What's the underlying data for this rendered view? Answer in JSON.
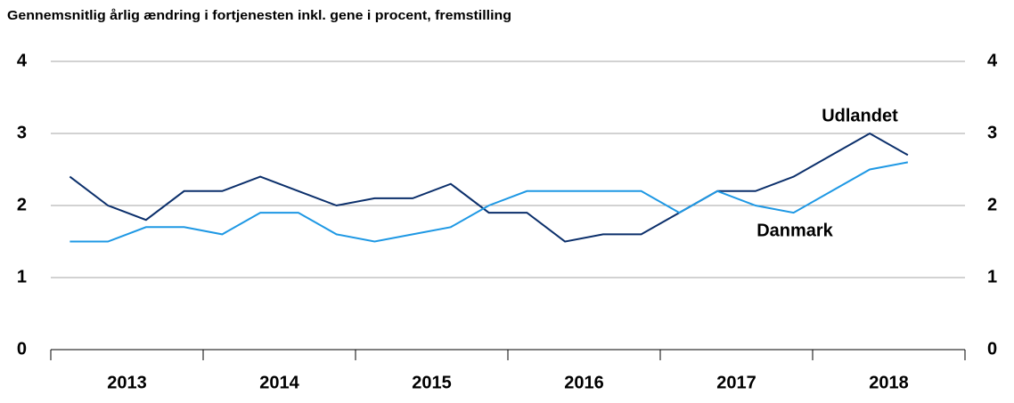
{
  "chart_data": {
    "type": "line",
    "title": "Gennemsnitlig årlig ændring i fortjenesten inkl. gene i procent, fremstilling",
    "categories": [
      null,
      null,
      null,
      null,
      null,
      null,
      null,
      null,
      null,
      null,
      null,
      null,
      null,
      null,
      null,
      null,
      null,
      null,
      null,
      null,
      null,
      null,
      null
    ],
    "years": [
      "2013",
      "2014",
      "2015",
      "2016",
      "2017",
      "2018"
    ],
    "series": [
      {
        "name": "Udlandet",
        "color": "#0b2f6b",
        "values": [
          2.4,
          2.0,
          1.8,
          2.2,
          2.2,
          2.4,
          2.2,
          2.0,
          2.1,
          2.1,
          2.3,
          1.9,
          1.9,
          1.5,
          1.6,
          1.6,
          1.9,
          2.2,
          2.2,
          2.4,
          2.7,
          3.0,
          2.7
        ]
      },
      {
        "name": "Danmark",
        "color": "#1e98e4",
        "values": [
          1.5,
          1.5,
          1.7,
          1.7,
          1.6,
          1.9,
          1.9,
          1.6,
          1.5,
          1.6,
          1.7,
          2.0,
          2.2,
          2.2,
          2.2,
          2.2,
          1.9,
          2.2,
          2.0,
          1.9,
          2.2,
          2.5,
          2.6
        ]
      }
    ],
    "ylim": [
      0,
      4
    ],
    "yticks": [
      0,
      1,
      2,
      3,
      4
    ],
    "y2lim": [
      0,
      4
    ],
    "y2ticks": [
      0,
      1,
      2,
      3,
      4
    ],
    "grid": true
  }
}
